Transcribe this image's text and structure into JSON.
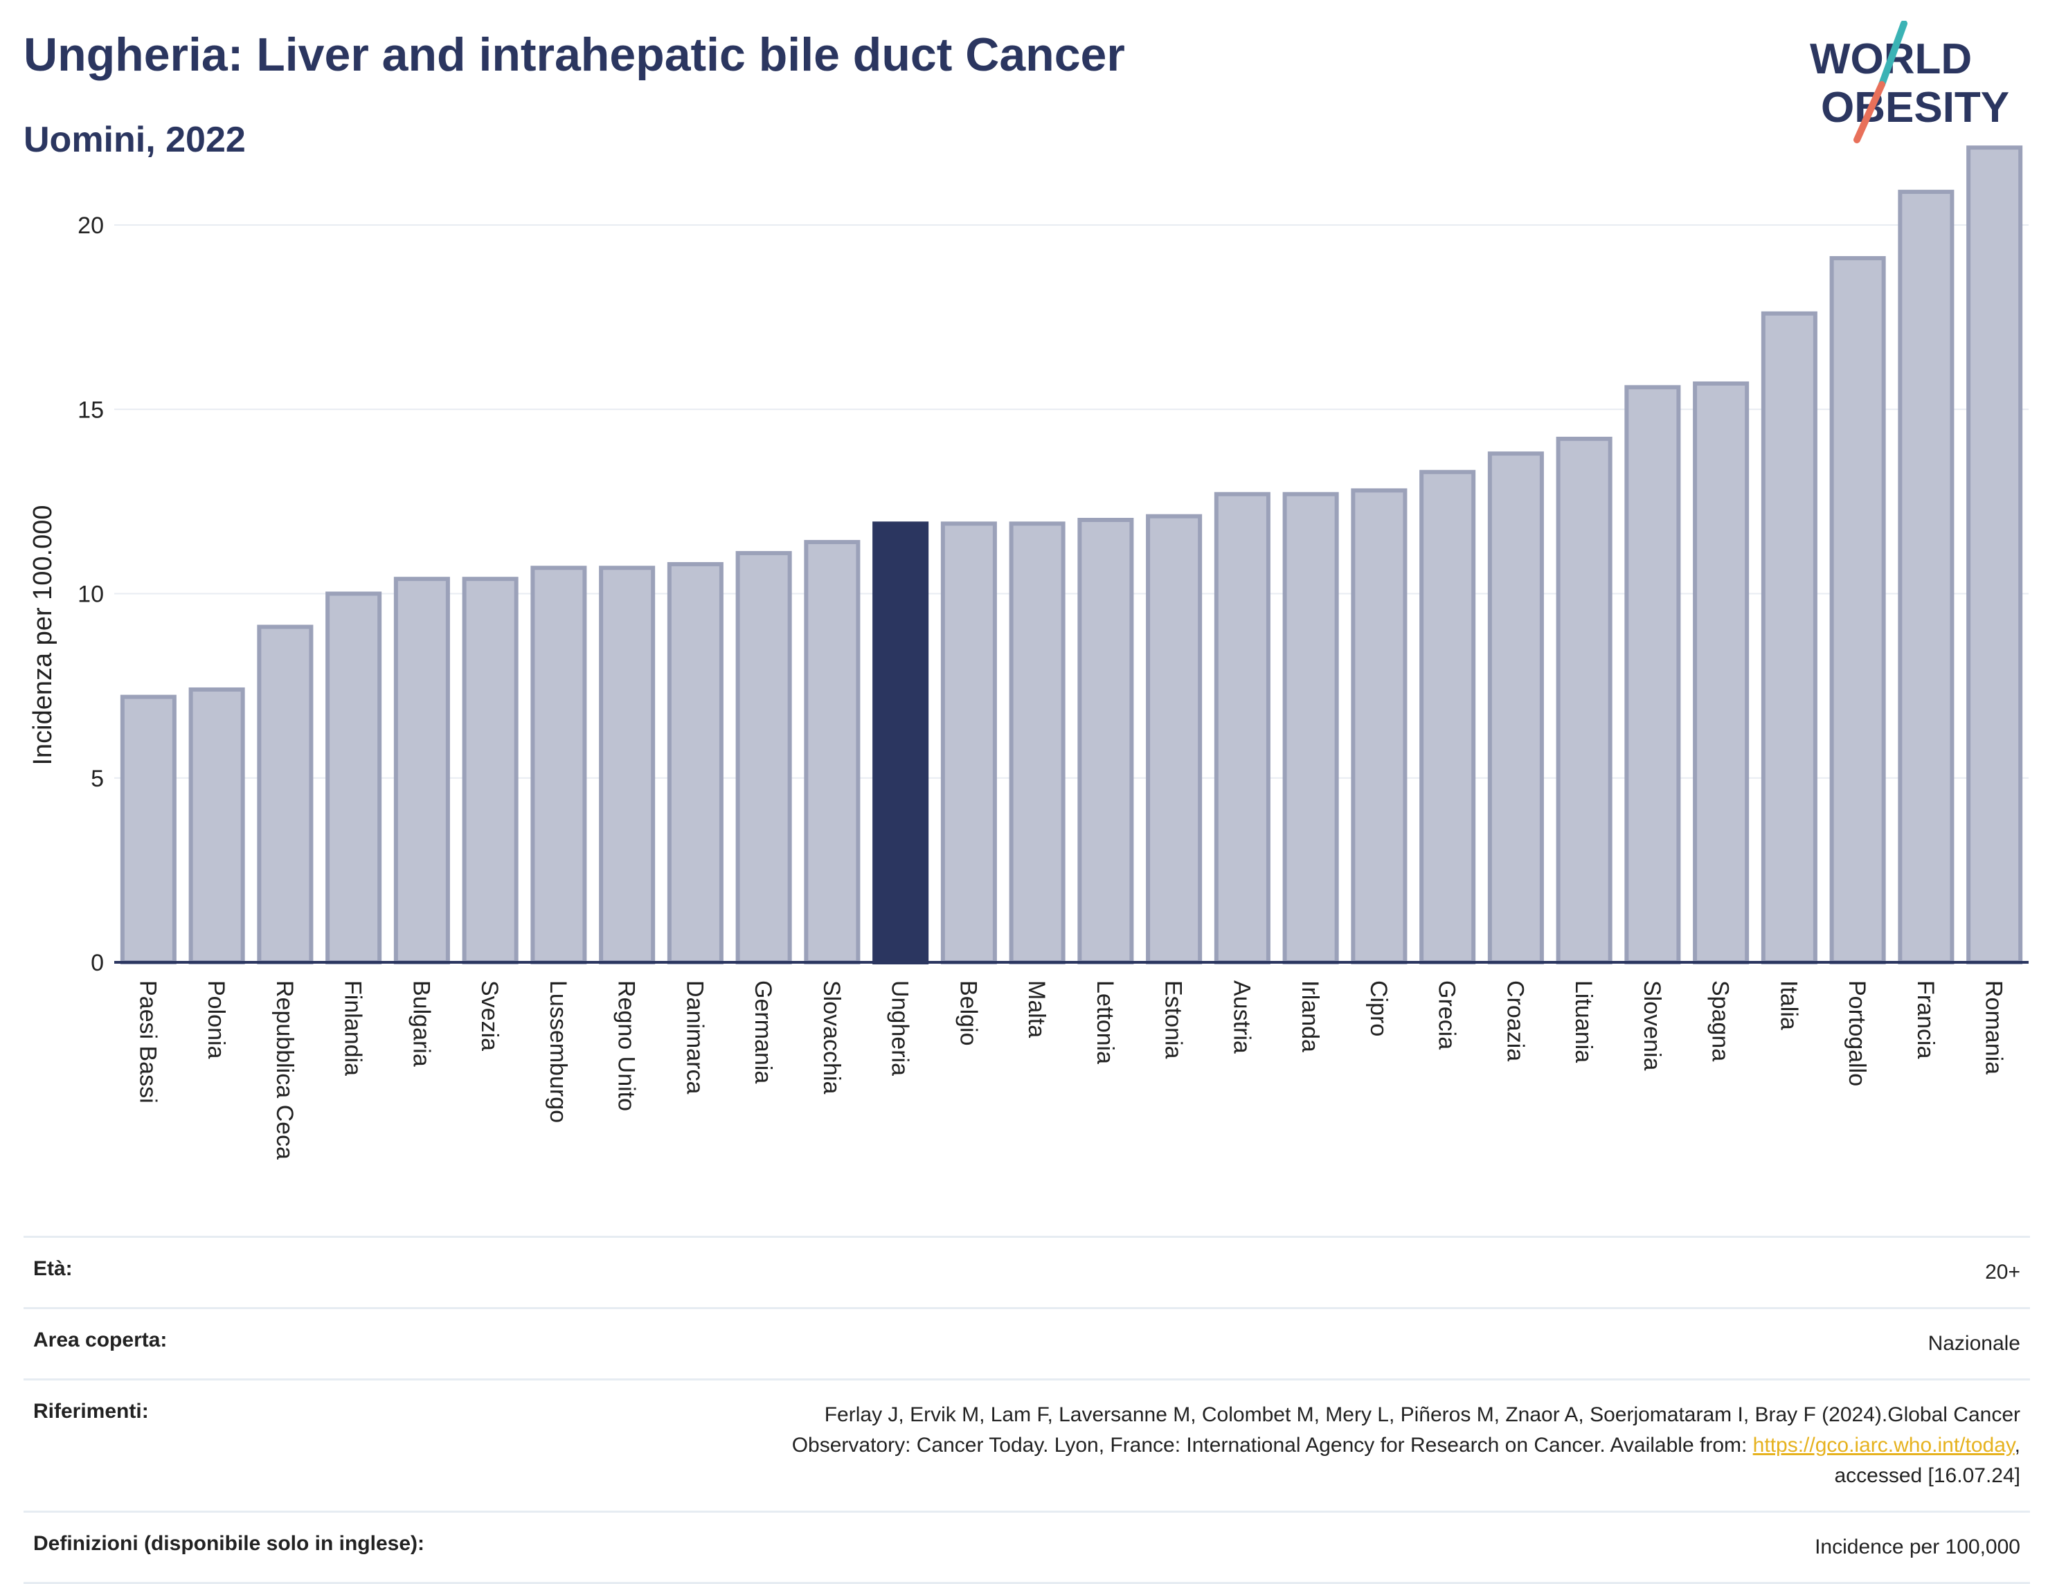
{
  "header": {
    "title": "Ungheria: Liver and intrahepatic bile duct Cancer",
    "subtitle": "Uomini, 2022",
    "logo": {
      "line1": "WORLD",
      "line2": "OBESITY",
      "colors": {
        "text": "#2b3660",
        "slash_top": "#3bb3b5",
        "slash_bottom": "#e8705a"
      }
    }
  },
  "chart_data": {
    "type": "bar",
    "ylabel": "Incidenza per 100.000",
    "xlabel": "",
    "ylim": [
      0,
      22.5
    ],
    "yticks": [
      0,
      5,
      10,
      15,
      20
    ],
    "grid": true,
    "highlight": "Ungheria",
    "colors": {
      "bar": "#bec2d2",
      "bar_border": "#9ba1b9",
      "highlight": "#2b3660",
      "grid": "#e8ecf2",
      "axis": "#2b3660"
    },
    "categories": [
      "Paesi Bassi",
      "Polonia",
      "Repubblica Ceca",
      "Finlandia",
      "Bulgaria",
      "Svezia",
      "Lussemburgo",
      "Regno Unito",
      "Danimarca",
      "Germania",
      "Slovacchia",
      "Ungheria",
      "Belgio",
      "Malta",
      "Lettonia",
      "Estonia",
      "Austria",
      "Irlanda",
      "Cipro",
      "Grecia",
      "Croazia",
      "Lituania",
      "Slovenia",
      "Spagna",
      "Italia",
      "Portogallo",
      "Francia",
      "Romania"
    ],
    "values": [
      7.2,
      7.4,
      9.1,
      10.0,
      10.4,
      10.4,
      10.7,
      10.7,
      10.8,
      11.1,
      11.4,
      11.9,
      11.9,
      11.9,
      12.0,
      12.1,
      12.7,
      12.7,
      12.8,
      13.3,
      13.8,
      14.2,
      15.6,
      15.7,
      17.6,
      19.1,
      20.9,
      22.1
    ]
  },
  "metadata": {
    "eta": {
      "label": "Età:",
      "value": "20+"
    },
    "area": {
      "label": "Area coperta:",
      "value": "Nazionale"
    },
    "riferimenti": {
      "label": "Riferimenti:",
      "text1": "Ferlay J, Ervik M, Lam F, Laversanne M, Colombet M, Mery L, Piñeros M, Znaor A, Soerjomataram I, Bray F (2024).Global Cancer",
      "text2": "Observatory: Cancer Today. Lyon, France: International Agency for Research on Cancer. Available from: ",
      "link": "https://gco.iarc.who.int/today",
      "text3": ",",
      "text4": "accessed [16.07.24]"
    },
    "definizioni": {
      "label": "Definizioni (disponibile solo in inglese):",
      "value": "Incidence per 100,000"
    }
  }
}
